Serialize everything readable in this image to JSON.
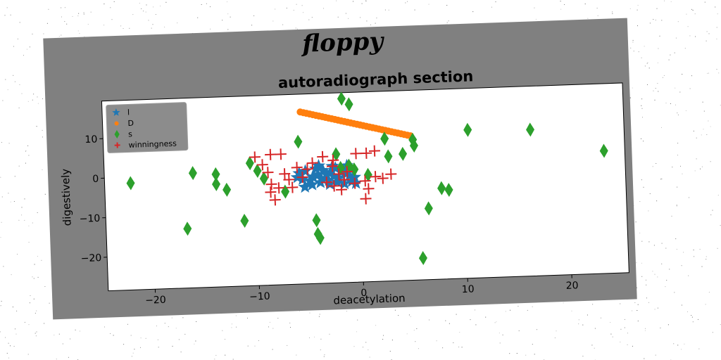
{
  "figure": {
    "suptitle": "floppy",
    "background": "#808080"
  },
  "chart_data": {
    "type": "scatter",
    "title": "autoradiograph section",
    "xlabel": "deacetylation",
    "ylabel": "digestively",
    "xlim": [
      -24.5,
      25.5
    ],
    "ylim": [
      -28.5,
      19.5
    ],
    "xticks": [
      -20,
      -10,
      0,
      10,
      20
    ],
    "yticks": [
      -20,
      -10,
      0,
      10
    ],
    "xtick_labels": [
      "−20",
      "−10",
      "0",
      "10",
      "20"
    ],
    "ytick_labels": [
      "−20",
      "−10",
      "0",
      "10"
    ],
    "grid": false,
    "legend_position": "top-left",
    "series": [
      {
        "name": "l",
        "marker": "star",
        "color": "#1f77b4",
        "points": [
          [
            -5.5,
            -2
          ],
          [
            -5.2,
            0
          ],
          [
            -4.8,
            -2.5
          ],
          [
            -4.5,
            -1.5
          ],
          [
            -4.2,
            0.5
          ],
          [
            -4,
            -1
          ],
          [
            -3.7,
            -2
          ],
          [
            -3.5,
            0
          ],
          [
            -3.2,
            -1
          ],
          [
            -3,
            -2.5
          ],
          [
            -2.8,
            -0.5
          ],
          [
            -2.5,
            -1.5
          ],
          [
            -2.3,
            0.5
          ],
          [
            -2,
            -2
          ],
          [
            -1.8,
            -0.5
          ],
          [
            -1.5,
            0
          ],
          [
            -1.3,
            -1
          ],
          [
            -1,
            -1.5
          ],
          [
            -0.8,
            0
          ],
          [
            -0.5,
            -2
          ],
          [
            -5.3,
            -4
          ],
          [
            -4.6,
            -3.5
          ],
          [
            -3.8,
            -3
          ],
          [
            -2.9,
            -3.5
          ],
          [
            -2.2,
            -3
          ],
          [
            -1.5,
            -3.5
          ],
          [
            -0.8,
            -3
          ],
          [
            -0.4,
            -3.5
          ],
          [
            -5.8,
            -0.5
          ],
          [
            -6,
            -1.5
          ],
          [
            -1.2,
            1
          ],
          [
            -2.6,
            1
          ],
          [
            -3.9,
            1.2
          ]
        ]
      },
      {
        "name": "D",
        "marker": "circle",
        "color": "#ff7f0e",
        "points": [
          [
            -5.5,
            15
          ],
          [
            -5.2,
            14.8
          ],
          [
            -4.9,
            14.6
          ],
          [
            -4.6,
            14.4
          ],
          [
            -4.3,
            14.2
          ],
          [
            -4,
            14
          ],
          [
            -3.7,
            13.8
          ],
          [
            -3.4,
            13.6
          ],
          [
            -3.1,
            13.4
          ],
          [
            -2.8,
            13.2
          ],
          [
            -2.5,
            13
          ],
          [
            -2.2,
            12.8
          ],
          [
            -1.9,
            12.6
          ],
          [
            -1.6,
            12.4
          ],
          [
            -1.3,
            12.2
          ],
          [
            -1,
            12
          ],
          [
            -0.7,
            11.8
          ],
          [
            -0.4,
            11.6
          ],
          [
            -0.1,
            11.4
          ],
          [
            0.2,
            11.2
          ],
          [
            0.5,
            11
          ],
          [
            0.8,
            10.8
          ],
          [
            1.1,
            10.6
          ],
          [
            1.4,
            10.4
          ],
          [
            1.7,
            10.2
          ],
          [
            2,
            10
          ],
          [
            2.3,
            9.8
          ],
          [
            2.6,
            9.6
          ],
          [
            2.9,
            9.4
          ],
          [
            3.2,
            9.2
          ],
          [
            3.5,
            9
          ],
          [
            3.8,
            8.8
          ],
          [
            4.1,
            8.6
          ],
          [
            4.4,
            8.4
          ],
          [
            4.7,
            8.2
          ],
          [
            5,
            8
          ]
        ]
      },
      {
        "name": "s",
        "marker": "diamond",
        "color": "#2ca02c",
        "points": [
          [
            -1.5,
            18
          ],
          [
            -0.8,
            16.5
          ],
          [
            -5.8,
            7.5
          ],
          [
            -2.2,
            4
          ],
          [
            -1,
            1
          ],
          [
            2.5,
            7.5
          ],
          [
            2.8,
            3
          ],
          [
            4.2,
            3.5
          ],
          [
            5.2,
            7
          ],
          [
            5.3,
            5.5
          ],
          [
            10.5,
            9
          ],
          [
            16.5,
            8.5
          ],
          [
            23.5,
            2.5
          ],
          [
            -22,
            -1.5
          ],
          [
            -16,
            0.5
          ],
          [
            -13.8,
            0
          ],
          [
            -13.8,
            -2.5
          ],
          [
            -12.8,
            -4
          ],
          [
            -10.5,
            2.5
          ],
          [
            -9.8,
            0.5
          ],
          [
            -9.2,
            -1.5
          ],
          [
            -7.2,
            -5
          ],
          [
            -1.8,
            0.5
          ],
          [
            -0.5,
            0
          ],
          [
            0.8,
            -1.5
          ],
          [
            -4.3,
            -12.5
          ],
          [
            -4.2,
            -16
          ],
          [
            -4,
            -17
          ],
          [
            -11.2,
            -12
          ],
          [
            -16.7,
            -13.5
          ],
          [
            6.5,
            -10.5
          ],
          [
            7.8,
            -5.5
          ],
          [
            8.5,
            -6
          ],
          [
            5.8,
            -23
          ]
        ]
      },
      {
        "name": "winningness",
        "marker": "plus",
        "color": "#d62728",
        "points": [
          [
            -10,
            4
          ],
          [
            -9.3,
            2
          ],
          [
            -8.5,
            4.5
          ],
          [
            -7.5,
            4.5
          ],
          [
            -8.8,
            0
          ],
          [
            -8.5,
            -3
          ],
          [
            -7.8,
            -4
          ],
          [
            -8.6,
            -5
          ],
          [
            -8.2,
            -7
          ],
          [
            -6.5,
            -4
          ],
          [
            -6,
            1
          ],
          [
            -5,
            0.5
          ],
          [
            -4.5,
            2
          ],
          [
            -3.5,
            3.5
          ],
          [
            -2.5,
            2.5
          ],
          [
            -2,
            -1
          ],
          [
            -1.5,
            -2.5
          ],
          [
            -1.8,
            -5
          ],
          [
            -2.5,
            -4
          ],
          [
            -3.2,
            -3
          ],
          [
            -0.3,
            4
          ],
          [
            0.7,
            4
          ],
          [
            1.5,
            4.5
          ],
          [
            0.5,
            -3
          ],
          [
            0.8,
            -5
          ],
          [
            0.5,
            -7.5
          ],
          [
            1.5,
            -2
          ],
          [
            2.2,
            -2.5
          ],
          [
            3,
            -1.5
          ],
          [
            -1.2,
            -0.5
          ],
          [
            -0.5,
            -3.5
          ],
          [
            -2.6,
            1
          ],
          [
            -6.8,
            -2
          ],
          [
            -7.2,
            -0.5
          ],
          [
            -5.5,
            -1.5
          ]
        ]
      }
    ]
  }
}
